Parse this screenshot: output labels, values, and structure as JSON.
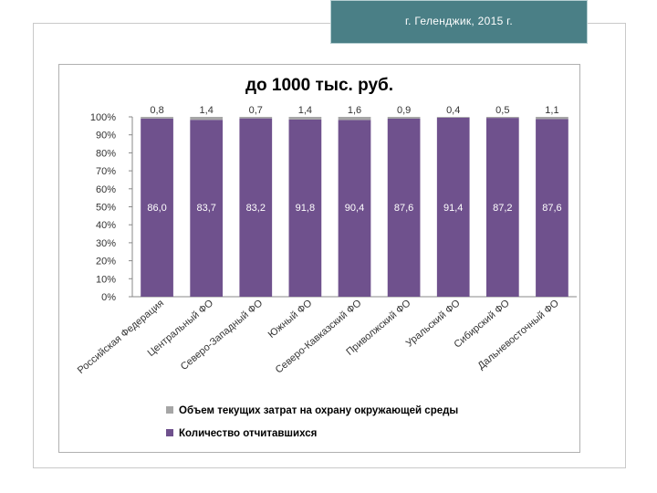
{
  "header": {
    "location_text": "г. Геленджик, 2015 г."
  },
  "chart_data": {
    "type": "bar",
    "stacked": true,
    "title": "до 1000 тыс. руб.",
    "categories": [
      "Российская Федерация",
      "Центральный ФО",
      "Северо-Западный ФО",
      "Южный ФО",
      "Северо-Кавказский ФО",
      "Приволжский ФО",
      "Уральский ФО",
      "Сибирский ФО",
      "Дальневосточный ФО"
    ],
    "series": [
      {
        "name": "Количество отчитавшихся",
        "values": [
          86.0,
          83.7,
          83.2,
          91.8,
          90.4,
          87.6,
          91.4,
          87.2,
          87.6
        ],
        "labels": [
          "86,0",
          "83,7",
          "83,2",
          "91,8",
          "90,4",
          "87,6",
          "91,4",
          "87,2",
          "87,6"
        ],
        "color": "#6f518d"
      },
      {
        "name": "Объем текущих затрат на охрану окружающей среды",
        "values": [
          0.8,
          1.4,
          0.7,
          1.4,
          1.6,
          0.9,
          0.4,
          0.5,
          1.1
        ],
        "labels": [
          "0,8",
          "1,4",
          "0,7",
          "1,4",
          "1,6",
          "0,9",
          "0,4",
          "0,5",
          "1,1"
        ],
        "color": "#a6a6a6"
      }
    ],
    "ylim": [
      0,
      100
    ],
    "yticks": [
      "0%",
      "10%",
      "20%",
      "30%",
      "40%",
      "50%",
      "60%",
      "70%",
      "80%",
      "90%",
      "100%"
    ],
    "percent_stacked": true,
    "legend_position": "bottom",
    "legend": [
      {
        "name": "Объем текущих затрат на охрану окружающей среды",
        "color": "#a6a6a6"
      },
      {
        "name": "Количество отчитавшихся",
        "color": "#6f518d"
      }
    ],
    "grid": false
  }
}
